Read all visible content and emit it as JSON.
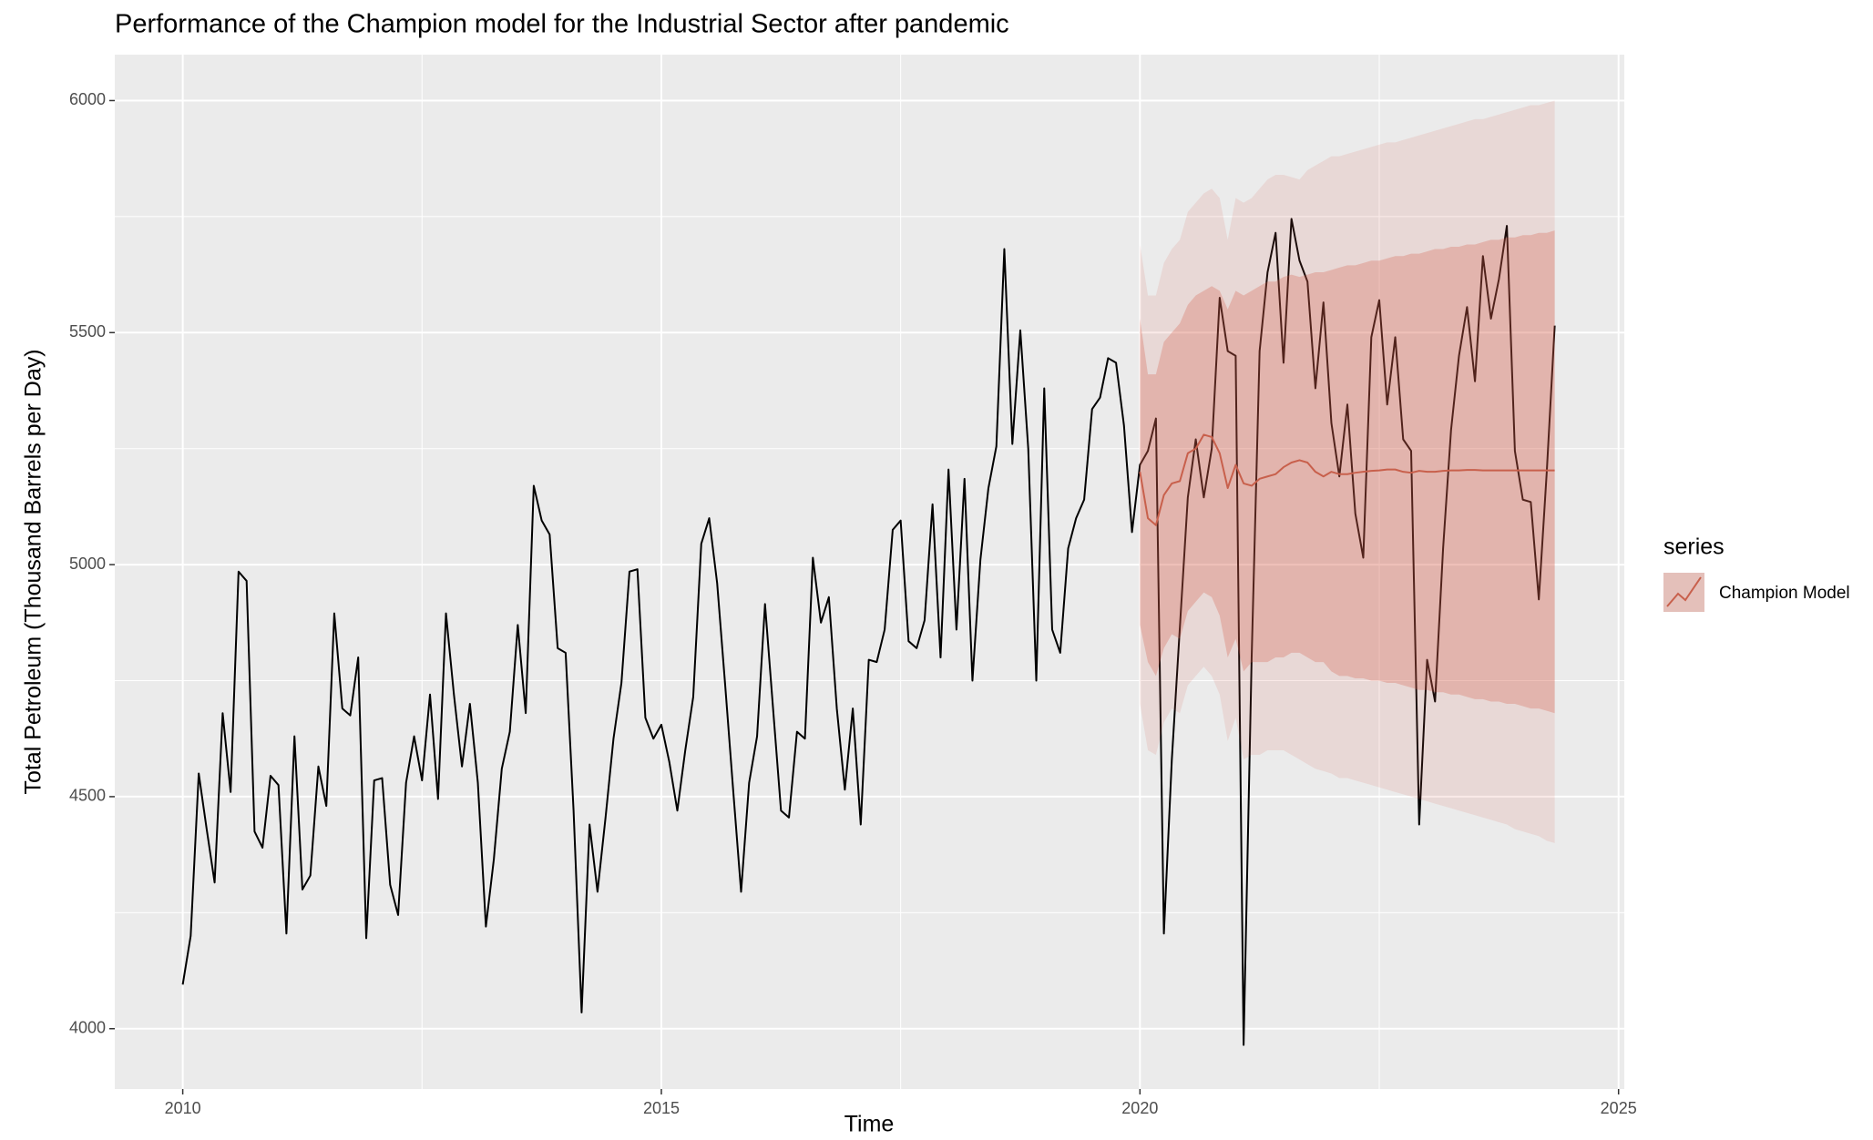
{
  "chart_data": {
    "type": "line",
    "title": "Performance of the Champion model for the Industrial Sector after pandemic",
    "x_label": "Time",
    "y_label": "Total Petroleum (Thousand Barrels per Day)",
    "legend_title": "series",
    "grid": true,
    "xlim": [
      2009.29,
      2025.06
    ],
    "ylim": [
      3870,
      6099
    ],
    "xticks": [
      2010,
      2015,
      2020,
      2025
    ],
    "yticks": [
      4000,
      4500,
      5000,
      5500,
      6000
    ],
    "observed": {
      "color": "#000000",
      "x": [
        2010,
        2010.083,
        2010.167,
        2010.25,
        2010.333,
        2010.417,
        2010.5,
        2010.583,
        2010.667,
        2010.75,
        2010.833,
        2010.917,
        2011,
        2011.083,
        2011.167,
        2011.25,
        2011.333,
        2011.417,
        2011.5,
        2011.583,
        2011.667,
        2011.75,
        2011.833,
        2011.917,
        2012,
        2012.083,
        2012.167,
        2012.25,
        2012.333,
        2012.417,
        2012.5,
        2012.583,
        2012.667,
        2012.75,
        2012.833,
        2012.917,
        2013,
        2013.083,
        2013.167,
        2013.25,
        2013.333,
        2013.417,
        2013.5,
        2013.583,
        2013.667,
        2013.75,
        2013.833,
        2013.917,
        2014,
        2014.083,
        2014.167,
        2014.25,
        2014.333,
        2014.417,
        2014.5,
        2014.583,
        2014.667,
        2014.75,
        2014.833,
        2014.917,
        2015,
        2015.083,
        2015.167,
        2015.25,
        2015.333,
        2015.417,
        2015.5,
        2015.583,
        2015.667,
        2015.75,
        2015.833,
        2015.917,
        2016,
        2016.083,
        2016.167,
        2016.25,
        2016.333,
        2016.417,
        2016.5,
        2016.583,
        2016.667,
        2016.75,
        2016.833,
        2016.917,
        2017,
        2017.083,
        2017.167,
        2017.25,
        2017.333,
        2017.417,
        2017.5,
        2017.583,
        2017.667,
        2017.75,
        2017.833,
        2017.917,
        2018,
        2018.083,
        2018.167,
        2018.25,
        2018.333,
        2018.417,
        2018.5,
        2018.583,
        2018.667,
        2018.75,
        2018.833,
        2018.917,
        2019,
        2019.083,
        2019.167,
        2019.25,
        2019.333,
        2019.417,
        2019.5,
        2019.583,
        2019.667,
        2019.75,
        2019.833,
        2019.917,
        2020,
        2020.083,
        2020.167,
        2020.25,
        2020.333,
        2020.417,
        2020.5,
        2020.583,
        2020.667,
        2020.75,
        2020.833,
        2020.917,
        2021,
        2021.083,
        2021.167,
        2021.25,
        2021.333,
        2021.417,
        2021.5,
        2021.583,
        2021.667,
        2021.75,
        2021.833,
        2021.917,
        2022,
        2022.083,
        2022.167,
        2022.25,
        2022.333,
        2022.417,
        2022.5,
        2022.583,
        2022.667,
        2022.75,
        2022.833,
        2022.917,
        2023,
        2023.083,
        2023.167,
        2023.25,
        2023.333,
        2023.417,
        2023.5,
        2023.583,
        2023.667,
        2023.75,
        2023.833,
        2023.917,
        2024,
        2024.083,
        2024.167,
        2024.25,
        2024.333
      ],
      "values": [
        4095,
        4200,
        4550,
        4430,
        4315,
        4680,
        4510,
        4985,
        4965,
        4425,
        4390,
        4545,
        4525,
        4205,
        4630,
        4300,
        4330,
        4565,
        4480,
        4895,
        4690,
        4675,
        4800,
        4195,
        4535,
        4540,
        4310,
        4245,
        4530,
        4630,
        4535,
        4720,
        4495,
        4895,
        4720,
        4565,
        4700,
        4530,
        4220,
        4365,
        4560,
        4640,
        4870,
        4680,
        5170,
        5095,
        5065,
        4820,
        4810,
        4470,
        4035,
        4440,
        4295,
        4455,
        4625,
        4745,
        4985,
        4990,
        4670,
        4625,
        4655,
        4575,
        4470,
        4600,
        4715,
        5045,
        5100,
        4960,
        4740,
        4515,
        4295,
        4530,
        4630,
        4915,
        4690,
        4470,
        4455,
        4640,
        4625,
        5015,
        4875,
        4930,
        4690,
        4515,
        4690,
        4440,
        4795,
        4790,
        4860,
        5075,
        5095,
        4835,
        4820,
        4880,
        5130,
        4800,
        5205,
        4860,
        5185,
        4750,
        5010,
        5165,
        5255,
        5680,
        5260,
        5505,
        5250,
        4750,
        5380,
        4860,
        4810,
        5035,
        5100,
        5140,
        5335,
        5360,
        5445,
        5435,
        5300,
        5070,
        5215,
        5245,
        5315,
        4205,
        4580,
        4865,
        5145,
        5270,
        5145,
        5250,
        5575,
        5460,
        5450,
        3965,
        4800,
        5460,
        5630,
        5715,
        5435,
        5745,
        5655,
        5610,
        5380,
        5565,
        5305,
        5190,
        5345,
        5110,
        5015,
        5490,
        5570,
        5345,
        5490,
        5270,
        5245,
        4440,
        4795,
        4705,
        5035,
        5290,
        5450,
        5555,
        5395,
        5665,
        5530,
        5615,
        5730,
        5245,
        5140,
        5135,
        4925,
        5200,
        5515
      ]
    },
    "forecast": {
      "name": "Champion Model",
      "color": "#c8604c",
      "band_color": "#d55e4a",
      "x": [
        2020,
        2020.083,
        2020.167,
        2020.25,
        2020.333,
        2020.417,
        2020.5,
        2020.583,
        2020.667,
        2020.75,
        2020.833,
        2020.917,
        2021,
        2021.083,
        2021.167,
        2021.25,
        2021.333,
        2021.417,
        2021.5,
        2021.583,
        2021.667,
        2021.75,
        2021.833,
        2021.917,
        2022,
        2022.083,
        2022.167,
        2022.25,
        2022.333,
        2022.417,
        2022.5,
        2022.583,
        2022.667,
        2022.75,
        2022.833,
        2022.917,
        2023,
        2023.083,
        2023.167,
        2023.25,
        2023.333,
        2023.417,
        2023.5,
        2023.583,
        2023.667,
        2023.75,
        2023.833,
        2023.917,
        2024,
        2024.083,
        2024.167,
        2024.25,
        2024.333
      ],
      "values": [
        5200,
        5100,
        5085,
        5150,
        5175,
        5180,
        5240,
        5250,
        5280,
        5275,
        5240,
        5165,
        5215,
        5175,
        5170,
        5185,
        5190,
        5195,
        5210,
        5220,
        5225,
        5220,
        5200,
        5190,
        5200,
        5195,
        5195,
        5198,
        5200,
        5202,
        5203,
        5205,
        5205,
        5200,
        5198,
        5202,
        5200,
        5200,
        5202,
        5203,
        5203,
        5204,
        5204,
        5203,
        5203,
        5203,
        5203,
        5203,
        5203,
        5203,
        5203,
        5203,
        5203
      ],
      "hi80": [
        5530,
        5410,
        5410,
        5480,
        5500,
        5520,
        5560,
        5580,
        5590,
        5600,
        5590,
        5550,
        5590,
        5580,
        5590,
        5600,
        5610,
        5610,
        5620,
        5625,
        5620,
        5625,
        5630,
        5630,
        5635,
        5640,
        5645,
        5645,
        5650,
        5655,
        5655,
        5660,
        5665,
        5665,
        5670,
        5670,
        5675,
        5680,
        5680,
        5685,
        5685,
        5690,
        5690,
        5695,
        5700,
        5700,
        5705,
        5705,
        5710,
        5710,
        5715,
        5715,
        5720
      ],
      "lo80": [
        4870,
        4790,
        4760,
        4820,
        4850,
        4840,
        4900,
        4920,
        4940,
        4930,
        4890,
        4800,
        4840,
        4770,
        4790,
        4790,
        4790,
        4800,
        4800,
        4810,
        4810,
        4800,
        4790,
        4790,
        4770,
        4760,
        4760,
        4755,
        4755,
        4750,
        4750,
        4745,
        4745,
        4740,
        4735,
        4730,
        4730,
        4725,
        4725,
        4720,
        4720,
        4715,
        4710,
        4710,
        4705,
        4705,
        4700,
        4700,
        4695,
        4690,
        4690,
        4685,
        4680
      ],
      "hi95": [
        5690,
        5580,
        5580,
        5650,
        5680,
        5700,
        5760,
        5780,
        5800,
        5810,
        5790,
        5700,
        5790,
        5780,
        5790,
        5810,
        5830,
        5840,
        5840,
        5835,
        5830,
        5850,
        5860,
        5870,
        5880,
        5880,
        5885,
        5890,
        5895,
        5900,
        5905,
        5910,
        5910,
        5915,
        5920,
        5925,
        5930,
        5935,
        5940,
        5945,
        5950,
        5955,
        5960,
        5960,
        5965,
        5970,
        5975,
        5980,
        5985,
        5990,
        5990,
        5995,
        6000
      ],
      "lo95": [
        4700,
        4600,
        4590,
        4660,
        4690,
        4680,
        4740,
        4760,
        4780,
        4760,
        4720,
        4620,
        4670,
        4580,
        4590,
        4590,
        4600,
        4600,
        4600,
        4590,
        4580,
        4570,
        4560,
        4555,
        4550,
        4540,
        4540,
        4535,
        4530,
        4525,
        4520,
        4515,
        4510,
        4505,
        4500,
        4495,
        4490,
        4485,
        4480,
        4475,
        4470,
        4465,
        4460,
        4455,
        4450,
        4445,
        4440,
        4430,
        4425,
        4420,
        4415,
        4405,
        4400
      ]
    }
  }
}
